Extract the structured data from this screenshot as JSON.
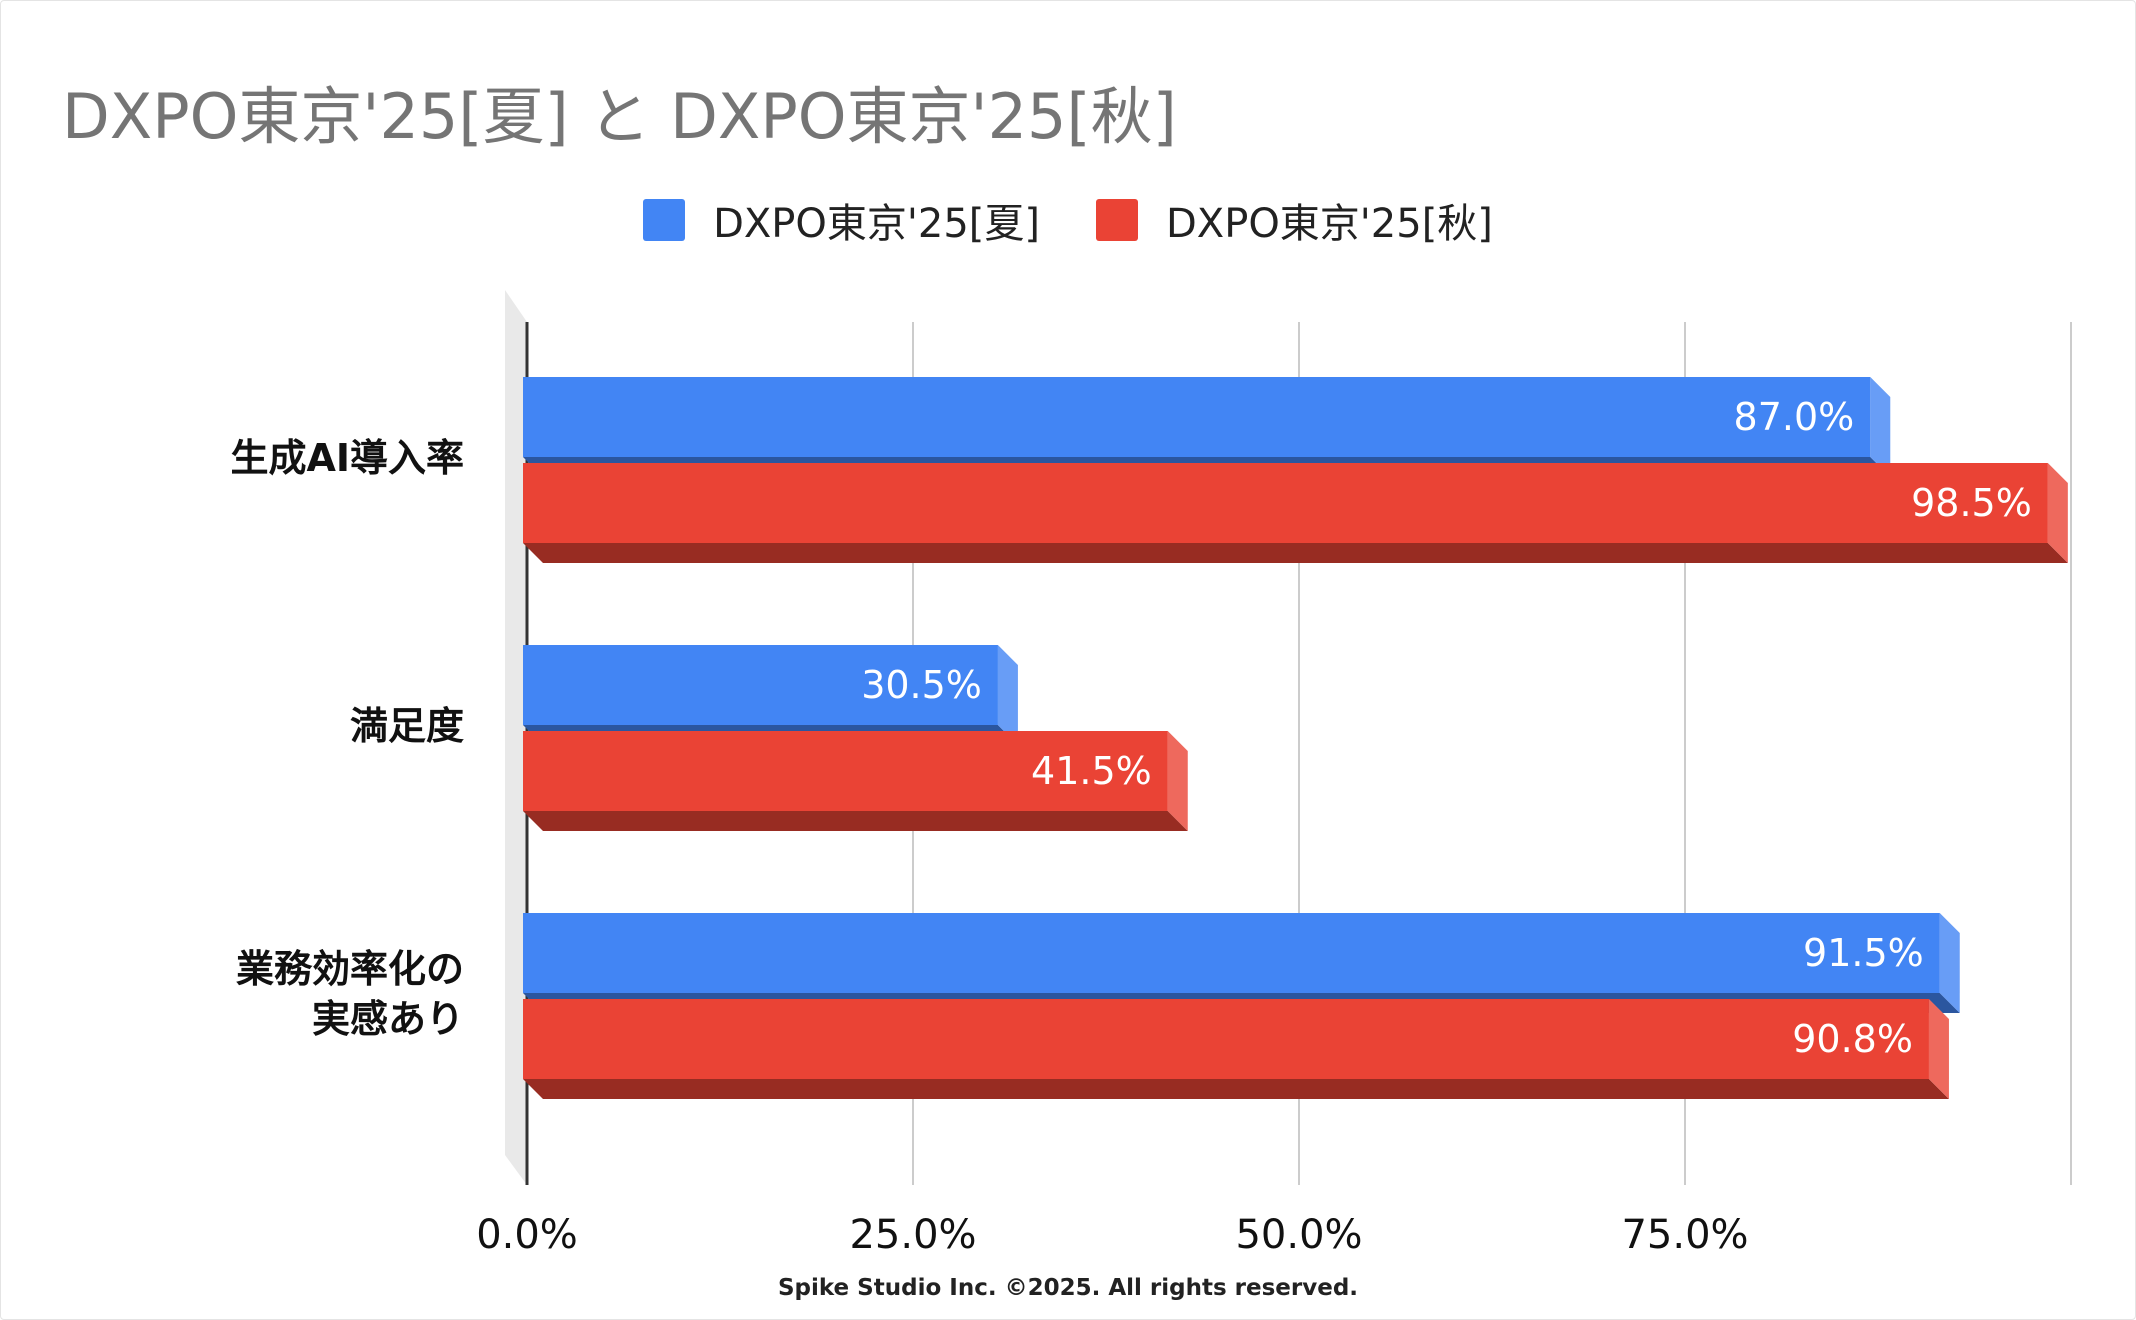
{
  "title": "DXPO東京'25[夏] と DXPO東京'25[秋]",
  "footer": "Spike Studio Inc. ©2025. All rights reserved.",
  "chart_data": {
    "type": "bar",
    "orientation": "horizontal",
    "style": "3d",
    "title": "DXPO東京'25[夏] と DXPO東京'25[秋]",
    "categories": [
      "生成AI導入率",
      "満足度",
      "業務効率化の\n実感あり"
    ],
    "series": [
      {
        "name": "DXPO東京'25[夏]",
        "color": "#4285F4",
        "values": [
          87.0,
          30.5,
          91.5
        ],
        "labels": [
          "87.0%",
          "30.5%",
          "91.5%"
        ]
      },
      {
        "name": "DXPO東京'25[秋]",
        "color": "#EA4335",
        "values": [
          98.5,
          41.5,
          90.8
        ],
        "labels": [
          "98.5%",
          "41.5%",
          "90.8%"
        ]
      }
    ],
    "xlim": [
      0,
      100
    ],
    "xticks": [
      0,
      25,
      50,
      75
    ],
    "xtick_labels": [
      "0.0%",
      "25.0%",
      "50.0%",
      "75.0%"
    ],
    "xlabel": "",
    "ylabel": "",
    "grid": true,
    "legend_position": "top"
  }
}
